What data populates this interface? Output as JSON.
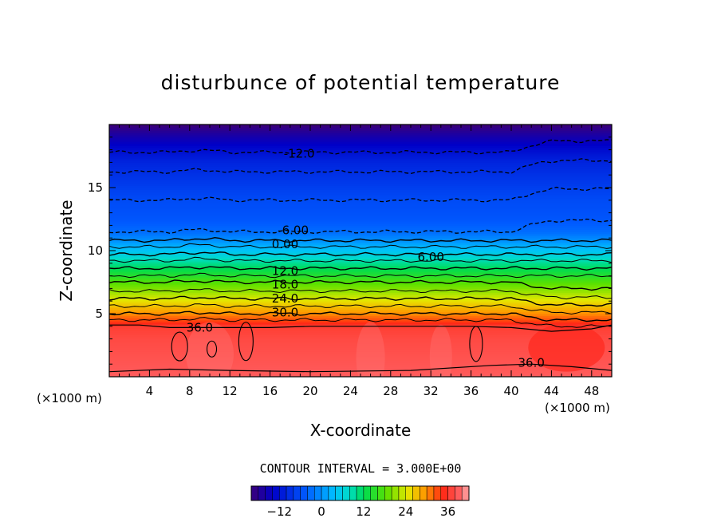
{
  "chart_data": {
    "type": "heatmap",
    "title": "disturbunce of potential temperature",
    "xlabel": "X-coordinate",
    "ylabel": "Z-coordinate",
    "x_unit_left": "(×1000 m)",
    "x_unit_right": "(×1000 m)",
    "xlim": [
      0,
      50
    ],
    "ylim": [
      0,
      20
    ],
    "x_ticks": [
      4,
      8,
      12,
      16,
      20,
      24,
      28,
      32,
      36,
      40,
      44,
      48
    ],
    "y_ticks": [
      5,
      10,
      15
    ],
    "contour_interval_label": "CONTOUR INTERVAL = 3.000E+00",
    "colorbar": {
      "min": -20,
      "max": 42,
      "step": 2,
      "tick_values": [
        -12,
        0,
        12,
        24,
        36
      ]
    },
    "z_of_height": [
      [
        0.0,
        39.0
      ],
      [
        1.0,
        38.5
      ],
      [
        2.0,
        38.0
      ],
      [
        3.0,
        37.5
      ],
      [
        4.0,
        36.5
      ],
      [
        4.5,
        33.0
      ],
      [
        5.0,
        30.0
      ],
      [
        5.6,
        27.0
      ],
      [
        6.2,
        24.0
      ],
      [
        6.8,
        21.0
      ],
      [
        7.5,
        18.0
      ],
      [
        8.0,
        15.0
      ],
      [
        8.6,
        12.0
      ],
      [
        9.2,
        9.0
      ],
      [
        9.7,
        6.0
      ],
      [
        10.3,
        3.0
      ],
      [
        10.8,
        0.0
      ],
      [
        11.5,
        -3.0
      ],
      [
        12.5,
        -5.0
      ],
      [
        14.0,
        -6.0
      ],
      [
        15.5,
        -8.0
      ],
      [
        17.0,
        -10.0
      ],
      [
        17.8,
        -12.0
      ],
      [
        18.5,
        -14.0
      ],
      [
        19.3,
        -17.0
      ],
      [
        20.0,
        -20.0
      ]
    ],
    "contour_labels": [
      {
        "text": "-12.0",
        "x": 18.9,
        "z": 17.7
      },
      {
        "text": "-6.00",
        "x": 18.3,
        "z": 11.6
      },
      {
        "text": "0.00",
        "x": 17.5,
        "z": 10.5
      },
      {
        "text": "6.00",
        "x": 32.0,
        "z": 9.5
      },
      {
        "text": "12.0",
        "x": 17.5,
        "z": 8.4
      },
      {
        "text": "18.0",
        "x": 17.5,
        "z": 7.3
      },
      {
        "text": "24.0",
        "x": 17.5,
        "z": 6.2
      },
      {
        "text": "30.0",
        "x": 17.5,
        "z": 5.1
      },
      {
        "text": "36.0",
        "x": 9.0,
        "z": 3.9
      },
      {
        "text": "36.0",
        "x": 42.0,
        "z": 1.1
      }
    ]
  }
}
